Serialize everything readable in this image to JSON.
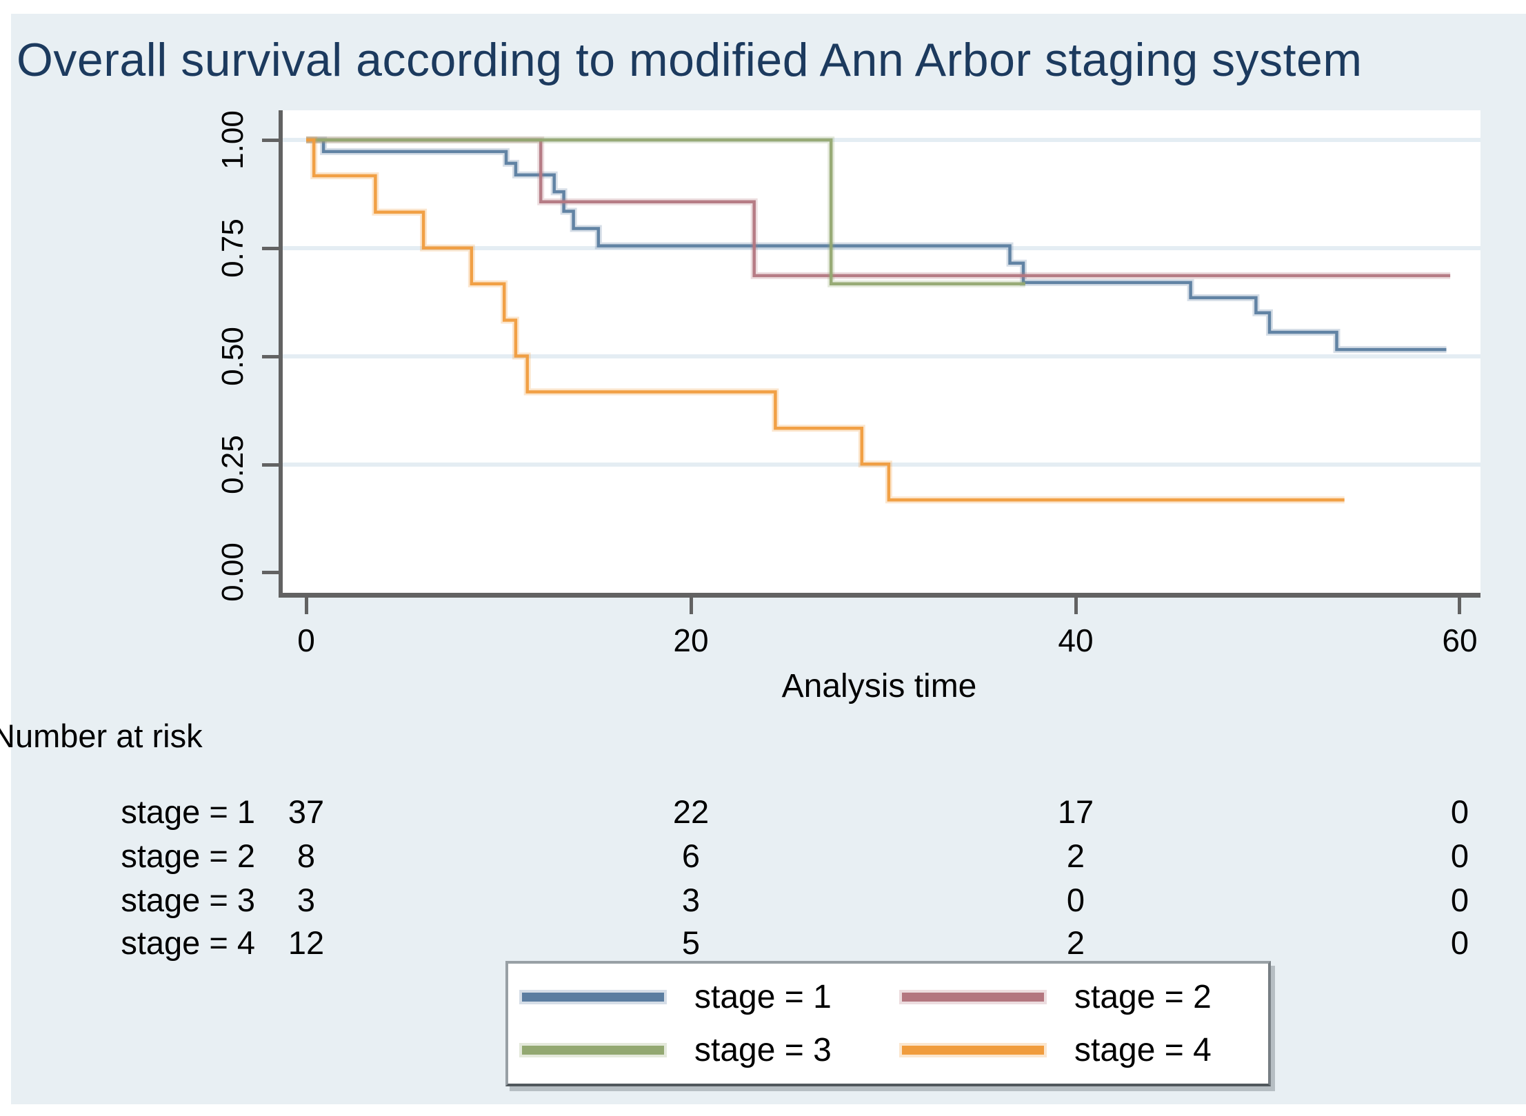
{
  "title": "Overall survival according to modified Ann Arbor staging system",
  "axes": {
    "y": {
      "ticks": [
        "1.00",
        "0.75",
        "0.50",
        "0.25",
        "0.00"
      ]
    },
    "x": {
      "ticks": [
        "0",
        "20",
        "40",
        "60"
      ],
      "label": "Analysis time"
    }
  },
  "at_risk": {
    "heading": "Number at risk",
    "rows": [
      {
        "label": "stage = 1",
        "values": [
          "37",
          "22",
          "17",
          "0"
        ]
      },
      {
        "label": "stage = 2",
        "values": [
          "8",
          "6",
          "2",
          "0"
        ]
      },
      {
        "label": "stage = 3",
        "values": [
          "3",
          "3",
          "0",
          "0"
        ]
      },
      {
        "label": "stage = 4",
        "values": [
          "12",
          "5",
          "2",
          "0"
        ]
      }
    ]
  },
  "legend": {
    "items": [
      {
        "label": "stage = 1",
        "color": "#5b7da0"
      },
      {
        "label": "stage = 2",
        "color": "#b3767f"
      },
      {
        "label": "stage = 3",
        "color": "#93a871"
      },
      {
        "label": "stage = 4",
        "color": "#f09c3d"
      }
    ]
  },
  "colors": {
    "background": "#e8eff3",
    "plot_background": "#ffffff",
    "title_text": "#1c3a5e",
    "axis_line": "#626262",
    "gridline": "#e4edf3",
    "tick_text": "#000000"
  },
  "chart_data": {
    "type": "line",
    "subtype": "kaplan-meier-step",
    "title": "Overall survival according to modified Ann Arbor staging system",
    "xlabel": "Analysis time",
    "ylabel": "",
    "xlim": [
      0,
      60
    ],
    "ylim": [
      0,
      1
    ],
    "x_ticks": [
      0,
      20,
      40,
      60
    ],
    "y_ticks": [
      0.0,
      0.25,
      0.5,
      0.75,
      1.0
    ],
    "grid": "horizontal",
    "legend_position": "bottom-center",
    "series": [
      {
        "name": "stage = 1",
        "color": "#5b7da0",
        "end": 59.3,
        "points": [
          [
            0,
            1.0
          ],
          [
            0.9,
            0.973
          ],
          [
            10.4,
            0.946
          ],
          [
            10.9,
            0.919
          ],
          [
            12.9,
            0.88
          ],
          [
            13.4,
            0.835
          ],
          [
            13.9,
            0.795
          ],
          [
            15.2,
            0.755
          ],
          [
            36.6,
            0.715
          ],
          [
            37.3,
            0.67
          ],
          [
            46.0,
            0.635
          ],
          [
            49.4,
            0.6
          ],
          [
            50.1,
            0.555
          ],
          [
            53.6,
            0.515
          ]
        ]
      },
      {
        "name": "stage = 2",
        "color": "#b3767f",
        "end": 59.5,
        "points": [
          [
            0,
            1.0
          ],
          [
            12.2,
            0.857
          ],
          [
            23.3,
            0.686
          ]
        ]
      },
      {
        "name": "stage = 3",
        "color": "#93a871",
        "end": 37.4,
        "points": [
          [
            0,
            1.0
          ],
          [
            27.3,
            0.667
          ]
        ]
      },
      {
        "name": "stage = 4",
        "color": "#f09c3d",
        "end": 54.0,
        "points": [
          [
            0,
            1.0
          ],
          [
            0.4,
            0.917
          ],
          [
            3.6,
            0.833
          ],
          [
            6.1,
            0.75
          ],
          [
            8.6,
            0.667
          ],
          [
            10.3,
            0.583
          ],
          [
            10.9,
            0.5
          ],
          [
            11.5,
            0.417
          ],
          [
            24.4,
            0.333
          ],
          [
            28.9,
            0.25
          ],
          [
            30.3,
            0.167
          ]
        ]
      }
    ],
    "number_at_risk": {
      "times": [
        0,
        20,
        40,
        60
      ],
      "groups": [
        {
          "name": "stage = 1",
          "counts": [
            37,
            22,
            17,
            0
          ]
        },
        {
          "name": "stage = 2",
          "counts": [
            8,
            6,
            2,
            0
          ]
        },
        {
          "name": "stage = 3",
          "counts": [
            3,
            3,
            0,
            0
          ]
        },
        {
          "name": "stage = 4",
          "counts": [
            12,
            5,
            2,
            0
          ]
        }
      ]
    }
  }
}
